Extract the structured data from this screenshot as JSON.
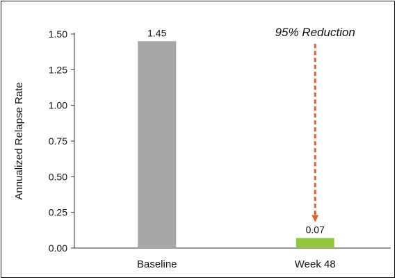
{
  "chart_data": {
    "type": "bar",
    "categories": [
      "Baseline",
      "Week 48"
    ],
    "values": [
      1.45,
      0.07
    ],
    "value_labels": [
      "1.45",
      "0.07"
    ],
    "bar_colors": [
      "#a6a6a6",
      "#92c83e"
    ],
    "ylabel": "Annualized Relapse Rate",
    "xlabel": "",
    "ylim": [
      0,
      1.5
    ],
    "yticks": [
      0,
      0.25,
      0.5,
      0.75,
      1.0,
      1.25,
      1.5
    ],
    "ytick_labels": [
      "0.00",
      "0.25",
      "0.50",
      "0.75",
      "1.00",
      "1.25",
      "1.50"
    ],
    "grid": false,
    "annotation": {
      "text": "95% Reduction",
      "style": "dashed-down-arrow",
      "color": "#e0602a",
      "from_category": "Week 48",
      "from_value": 1.45,
      "to_value": 0.07
    }
  }
}
